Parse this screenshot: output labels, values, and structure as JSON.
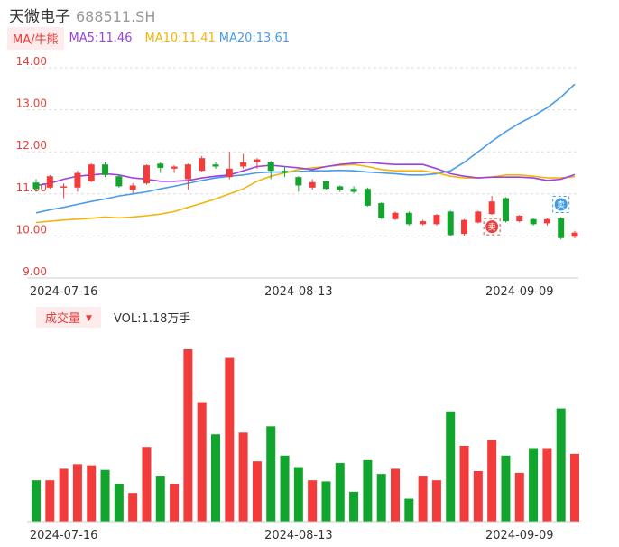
{
  "header": {
    "name": "天微电子",
    "code": "688511.SH"
  },
  "ma_legend": {
    "button": "MA/牛熊",
    "ma5": "MA5:11.46",
    "ma10": "MA10:11.41",
    "ma20": "MA20:13.61"
  },
  "volume_legend": {
    "button": "成交量",
    "text": "VOL:1.18万手"
  },
  "colors": {
    "up": "#f23c3c",
    "down": "#12a52d",
    "ma5": "#9c42e0",
    "ma10": "#f2b40d",
    "ma20": "#4a9be8"
  },
  "markers": [
    {
      "label": "卖",
      "color": "#e8403c"
    },
    {
      "label": "卖",
      "color": "#3e9be9"
    }
  ],
  "chart_data": [
    {
      "type": "candlestick",
      "ylim": [
        9.0,
        14.0
      ],
      "yticks": [
        "14.00",
        "13.00",
        "12.00",
        "11.00",
        "10.00",
        "9.00"
      ],
      "xtick_labels": [
        {
          "label": "2024-07-16",
          "index": 2
        },
        {
          "label": "2024-08-13",
          "index": 19
        },
        {
          "label": "2024-09-09",
          "index": 35
        }
      ],
      "candles": [
        {
          "o": 11.27,
          "c": 11.12,
          "h": 11.35,
          "l": 11.05
        },
        {
          "o": 11.15,
          "c": 11.42,
          "h": 11.45,
          "l": 11.12
        },
        {
          "o": 11.18,
          "c": 11.18,
          "h": 11.25,
          "l": 10.9
        },
        {
          "o": 11.15,
          "c": 11.5,
          "h": 11.55,
          "l": 11.05
        },
        {
          "o": 11.3,
          "c": 11.7,
          "h": 11.72,
          "l": 11.28
        },
        {
          "o": 11.7,
          "c": 11.45,
          "h": 11.75,
          "l": 11.4
        },
        {
          "o": 11.42,
          "c": 11.18,
          "h": 11.45,
          "l": 11.15
        },
        {
          "o": 11.1,
          "c": 11.2,
          "h": 11.25,
          "l": 11.02
        },
        {
          "o": 11.25,
          "c": 11.68,
          "h": 11.7,
          "l": 11.22
        },
        {
          "o": 11.72,
          "c": 11.62,
          "h": 11.75,
          "l": 11.5
        },
        {
          "o": 11.6,
          "c": 11.65,
          "h": 11.68,
          "l": 11.5
        },
        {
          "o": 11.35,
          "c": 11.7,
          "h": 11.72,
          "l": 11.1
        },
        {
          "o": 11.55,
          "c": 11.85,
          "h": 11.9,
          "l": 11.52
        },
        {
          "o": 11.7,
          "c": 11.65,
          "h": 11.75,
          "l": 11.6
        },
        {
          "o": 11.4,
          "c": 11.6,
          "h": 12.0,
          "l": 11.35
        },
        {
          "o": 11.65,
          "c": 11.75,
          "h": 11.95,
          "l": 11.6
        },
        {
          "o": 11.75,
          "c": 11.82,
          "h": 11.85,
          "l": 11.6
        },
        {
          "o": 11.75,
          "c": 11.55,
          "h": 11.78,
          "l": 11.35
        },
        {
          "o": 11.55,
          "c": 11.5,
          "h": 11.65,
          "l": 11.4
        },
        {
          "o": 11.4,
          "c": 11.2,
          "h": 11.42,
          "l": 11.05
        },
        {
          "o": 11.15,
          "c": 11.28,
          "h": 11.35,
          "l": 11.1
        },
        {
          "o": 11.3,
          "c": 11.12,
          "h": 11.32,
          "l": 11.1
        },
        {
          "o": 11.18,
          "c": 11.1,
          "h": 11.2,
          "l": 11.05
        },
        {
          "o": 11.12,
          "c": 11.05,
          "h": 11.18,
          "l": 11.02
        },
        {
          "o": 11.12,
          "c": 10.72,
          "h": 11.15,
          "l": 10.7
        },
        {
          "o": 10.78,
          "c": 10.42,
          "h": 10.8,
          "l": 10.4
        },
        {
          "o": 10.4,
          "c": 10.55,
          "h": 10.58,
          "l": 10.38
        },
        {
          "o": 10.55,
          "c": 10.28,
          "h": 10.58,
          "l": 10.25
        },
        {
          "o": 10.28,
          "c": 10.35,
          "h": 10.38,
          "l": 10.25
        },
        {
          "o": 10.28,
          "c": 10.5,
          "h": 10.52,
          "l": 10.25
        },
        {
          "o": 10.58,
          "c": 10.02,
          "h": 10.6,
          "l": 10.0
        },
        {
          "o": 10.05,
          "c": 10.38,
          "h": 10.4,
          "l": 10.0
        },
        {
          "o": 10.32,
          "c": 10.58,
          "h": 10.6,
          "l": 10.3
        },
        {
          "o": 10.52,
          "c": 10.82,
          "h": 10.95,
          "l": 10.5
        },
        {
          "o": 10.9,
          "c": 10.35,
          "h": 10.92,
          "l": 10.32
        },
        {
          "o": 10.35,
          "c": 10.48,
          "h": 10.5,
          "l": 10.32
        },
        {
          "o": 10.4,
          "c": 10.28,
          "h": 10.42,
          "l": 10.25
        },
        {
          "o": 10.3,
          "c": 10.4,
          "h": 10.42,
          "l": 10.25
        },
        {
          "o": 10.42,
          "c": 9.95,
          "h": 10.45,
          "l": 9.92
        },
        {
          "o": 9.98,
          "c": 10.08,
          "h": 10.12,
          "l": 9.95
        }
      ],
      "ma5": [
        11.2,
        11.25,
        11.35,
        11.42,
        11.45,
        11.48,
        11.45,
        11.38,
        11.35,
        11.3,
        11.3,
        11.32,
        11.38,
        11.42,
        11.45,
        11.55,
        11.65,
        11.68,
        11.65,
        11.62,
        11.58,
        11.65,
        11.7,
        11.73,
        11.75,
        11.72,
        11.7,
        11.7,
        11.7,
        11.6,
        11.48,
        11.42,
        11.38,
        11.4,
        11.4,
        11.4,
        11.38,
        11.32,
        11.35,
        11.46
      ],
      "ma10": [
        10.32,
        10.35,
        10.38,
        10.4,
        10.42,
        10.45,
        10.43,
        10.45,
        10.48,
        10.52,
        10.58,
        10.68,
        10.78,
        10.88,
        11.0,
        11.12,
        11.3,
        11.42,
        11.5,
        11.58,
        11.62,
        11.65,
        11.68,
        11.7,
        11.65,
        11.58,
        11.55,
        11.55,
        11.55,
        11.5,
        11.42,
        11.38,
        11.38,
        11.4,
        11.45,
        11.45,
        11.42,
        11.38,
        11.38,
        11.41
      ],
      "ma20": [
        10.55,
        10.62,
        10.68,
        10.75,
        10.82,
        10.88,
        10.95,
        11.0,
        11.05,
        11.12,
        11.18,
        11.25,
        11.32,
        11.38,
        11.42,
        11.45,
        11.5,
        11.52,
        11.52,
        11.53,
        11.55,
        11.55,
        11.56,
        11.55,
        11.52,
        11.5,
        11.48,
        11.45,
        11.45,
        11.48,
        11.55,
        11.75,
        12.0,
        12.25,
        12.48,
        12.68,
        12.85,
        13.05,
        13.3,
        13.61
      ]
    },
    {
      "type": "bar",
      "series_name": "成交量",
      "xtick_labels": [
        {
          "label": "2024-07-16",
          "index": 2
        },
        {
          "label": "2024-08-13",
          "index": 19
        },
        {
          "label": "2024-09-09",
          "index": 35
        }
      ],
      "values": [
        0.72,
        0.72,
        0.92,
        1.0,
        0.98,
        0.9,
        0.66,
        0.5,
        1.3,
        0.8,
        0.66,
        3.0,
        2.08,
        1.52,
        2.85,
        1.55,
        1.05,
        1.66,
        1.15,
        0.95,
        0.72,
        0.7,
        1.02,
        0.52,
        1.07,
        0.83,
        0.92,
        0.4,
        0.8,
        0.72,
        1.92,
        1.32,
        0.88,
        1.42,
        1.15,
        0.85,
        1.28,
        1.28,
        1.97,
        1.18
      ],
      "units": "万手"
    }
  ]
}
